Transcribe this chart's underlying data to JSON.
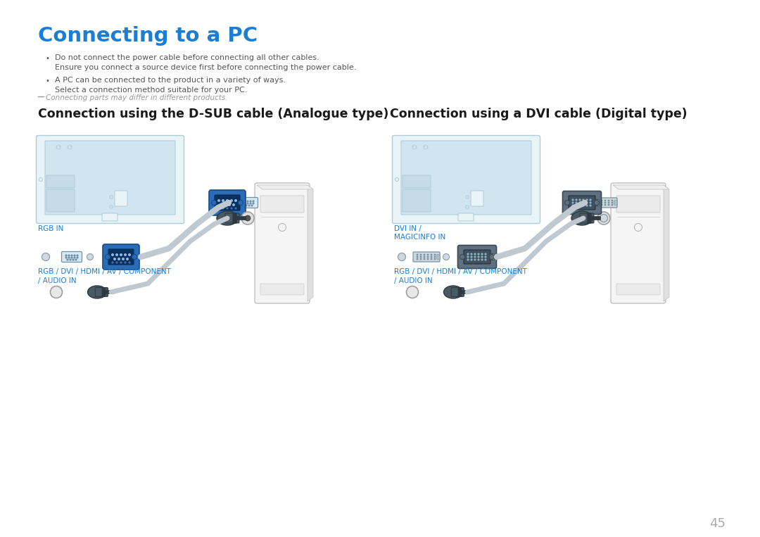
{
  "title": "Connecting to a PC",
  "title_color": "#1a7fd4",
  "bullet1_line1": "Do not connect the power cable before connecting all other cables.",
  "bullet1_line2": "Ensure you connect a source device first before connecting the power cable.",
  "bullet2_line1": "A PC can be connected to the product in a variety of ways.",
  "bullet2_line2": "Select a connection method suitable for your PC.",
  "note": "Connecting parts may differ in different products.",
  "section1_title": "Connection using the D-SUB cable (Analogue type)",
  "section2_title": "Connection using a DVI cable (Digital type)",
  "label_rgb_in": "RGB IN",
  "label_rgb_dvi": "RGB / DVI / HDMI / AV / COMPONENT",
  "label_audio_in": "/ AUDIO IN",
  "label_dvi_in": "DVI IN /",
  "label_magicinfo": "MAGICINFO IN",
  "label_rgb_dvi2": "RGB / DVI / HDMI / AV / COMPONENT",
  "label_audio_in2": "/ AUDIO IN",
  "page_number": "45",
  "bg_color": "#ffffff",
  "text_color": "#555555",
  "label_color": "#1a7fd4",
  "section_title_color": "#1a1a1a",
  "monitor_border": "#b0ccd8",
  "monitor_fill": "#e8f4f8",
  "monitor_inner_fill": "#d0e5ef",
  "pc_border": "#c0c0c0",
  "pc_fill": "#f5f5f5",
  "cable_color": "#c0c8d0",
  "vga_blue": "#2a6cb8",
  "vga_dark": "#1a4a80",
  "dvi_gray": "#607080",
  "dvi_dark": "#3a4a55",
  "audio_color": "#4a5a65",
  "audio_dark": "#2a3a42"
}
